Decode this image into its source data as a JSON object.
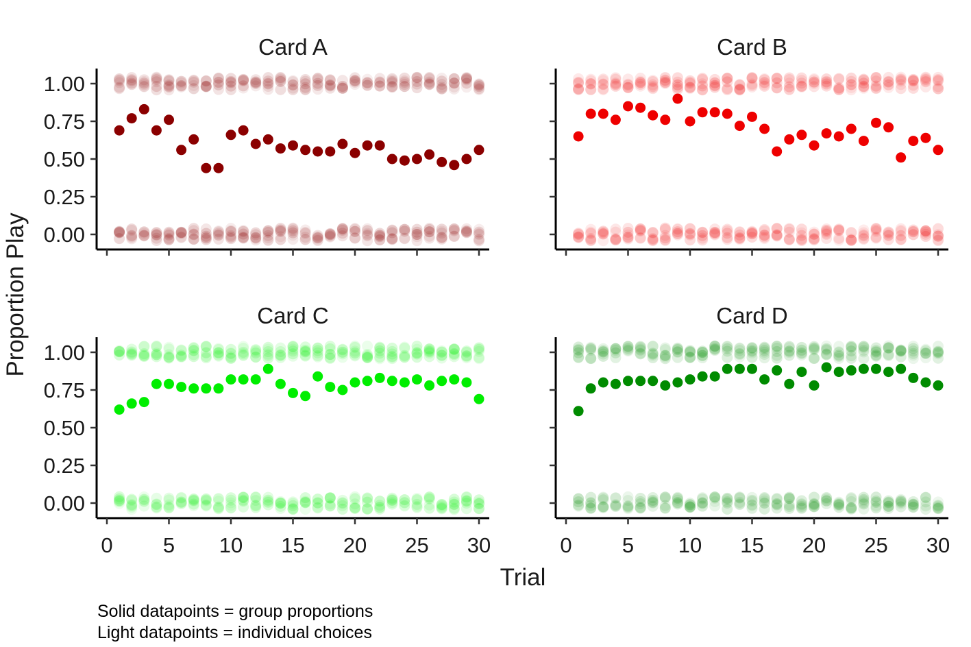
{
  "chart_data": {
    "type": "scatter",
    "xlabel": "Trial",
    "ylabel": "Proportion Play",
    "xlim": [
      0,
      30
    ],
    "ylim": [
      -0.1,
      1.1
    ],
    "xticks": [
      "0",
      "5",
      "10",
      "15",
      "20",
      "25",
      "30"
    ],
    "yticks": [
      "0.00",
      "0.25",
      "0.50",
      "0.75",
      "1.00"
    ],
    "grid": false,
    "legend": "none",
    "layout": "2x2 facets",
    "individual_choices": "light semi-transparent points at 0 and 1 (jittered) for every trial",
    "facets": [
      {
        "title": "Card A",
        "color": "#8b0000",
        "x": [
          1,
          2,
          3,
          4,
          5,
          6,
          7,
          8,
          9,
          10,
          11,
          12,
          13,
          14,
          15,
          16,
          17,
          18,
          19,
          20,
          21,
          22,
          23,
          24,
          25,
          26,
          27,
          28,
          29,
          30
        ],
        "values": [
          0.69,
          0.77,
          0.83,
          0.69,
          0.76,
          0.56,
          0.63,
          0.44,
          0.44,
          0.66,
          0.69,
          0.6,
          0.63,
          0.57,
          0.59,
          0.56,
          0.55,
          0.55,
          0.6,
          0.54,
          0.59,
          0.59,
          0.5,
          0.49,
          0.5,
          0.53,
          0.48,
          0.46,
          0.5,
          0.56
        ]
      },
      {
        "title": "Card B",
        "color": "#ee0000",
        "x": [
          1,
          2,
          3,
          4,
          5,
          6,
          7,
          8,
          9,
          10,
          11,
          12,
          13,
          14,
          15,
          16,
          17,
          18,
          19,
          20,
          21,
          22,
          23,
          24,
          25,
          26,
          27,
          28,
          29,
          30
        ],
        "values": [
          0.65,
          0.8,
          0.8,
          0.76,
          0.85,
          0.84,
          0.79,
          0.76,
          0.9,
          0.75,
          0.81,
          0.81,
          0.8,
          0.72,
          0.78,
          0.7,
          0.55,
          0.63,
          0.66,
          0.59,
          0.67,
          0.65,
          0.7,
          0.62,
          0.74,
          0.71,
          0.51,
          0.62,
          0.64,
          0.56
        ]
      },
      {
        "title": "Card C",
        "color": "#00ee00",
        "x": [
          1,
          2,
          3,
          4,
          5,
          6,
          7,
          8,
          9,
          10,
          11,
          12,
          13,
          14,
          15,
          16,
          17,
          18,
          19,
          20,
          21,
          22,
          23,
          24,
          25,
          26,
          27,
          28,
          29,
          30
        ],
        "values": [
          0.62,
          0.66,
          0.67,
          0.79,
          0.79,
          0.77,
          0.76,
          0.76,
          0.76,
          0.82,
          0.82,
          0.82,
          0.89,
          0.79,
          0.73,
          0.71,
          0.84,
          0.77,
          0.75,
          0.8,
          0.81,
          0.83,
          0.81,
          0.8,
          0.82,
          0.78,
          0.81,
          0.82,
          0.8,
          0.69
        ]
      },
      {
        "title": "Card D",
        "color": "#008b00",
        "x": [
          1,
          2,
          3,
          4,
          5,
          6,
          7,
          8,
          9,
          10,
          11,
          12,
          13,
          14,
          15,
          16,
          17,
          18,
          19,
          20,
          21,
          22,
          23,
          24,
          25,
          26,
          27,
          28,
          29,
          30
        ],
        "values": [
          0.61,
          0.76,
          0.8,
          0.79,
          0.81,
          0.81,
          0.81,
          0.78,
          0.8,
          0.82,
          0.84,
          0.84,
          0.89,
          0.89,
          0.89,
          0.82,
          0.88,
          0.79,
          0.87,
          0.78,
          0.9,
          0.87,
          0.88,
          0.89,
          0.89,
          0.87,
          0.89,
          0.83,
          0.8,
          0.78
        ]
      }
    ]
  },
  "caption": {
    "line1": "Solid datapoints = group proportions",
    "line2": "Light datapoints = individual choices"
  }
}
